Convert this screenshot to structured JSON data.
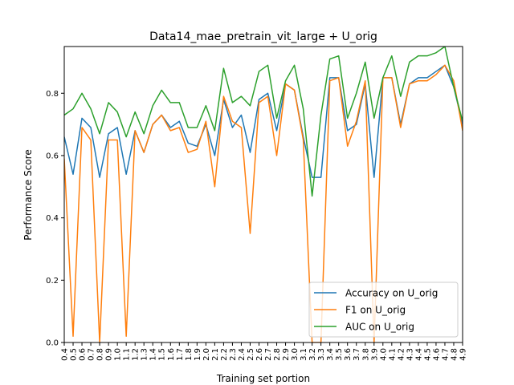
{
  "chart_data": {
    "type": "line",
    "title": "Data14_mae_pretrain_vit_large + U_orig",
    "xlabel": "Training set portion",
    "ylabel": "Performance Score",
    "ylim": [
      0.0,
      0.95
    ],
    "yticks": [
      "0.0",
      "0.2",
      "0.4",
      "0.6",
      "0.8"
    ],
    "grid": false,
    "legend_position": "lower-right",
    "categories": [
      "0.4",
      "0.5",
      "0.6",
      "0.7",
      "0.8",
      "0.9",
      "1.0",
      "1.1",
      "1.2",
      "1.3",
      "1.4",
      "1.5",
      "1.6",
      "1.7",
      "1.8",
      "1.9",
      "2.0",
      "2.1",
      "2.2",
      "2.3",
      "2.4",
      "2.5",
      "2.6",
      "2.7",
      "2.8",
      "2.9",
      "3.0",
      "3.1",
      "3.2",
      "3.3",
      "3.4",
      "3.5",
      "3.6",
      "3.7",
      "3.8",
      "3.9",
      "4.0",
      "4.1",
      "4.2",
      "4.3",
      "4.4",
      "4.5",
      "4.6",
      "4.7",
      "4.8",
      "4.9"
    ],
    "series": [
      {
        "name": "Accuracy on U_orig",
        "color": "#1f77b4",
        "values": [
          0.66,
          0.54,
          0.72,
          0.69,
          0.53,
          0.67,
          0.69,
          0.54,
          0.68,
          0.61,
          0.7,
          0.73,
          0.69,
          0.71,
          0.64,
          0.63,
          0.7,
          0.6,
          0.78,
          0.69,
          0.73,
          0.61,
          0.78,
          0.8,
          0.68,
          0.83,
          0.81,
          0.66,
          0.53,
          0.53,
          0.85,
          0.85,
          0.68,
          0.7,
          0.83,
          0.53,
          0.85,
          0.85,
          0.7,
          0.83,
          0.85,
          0.85,
          0.87,
          0.89,
          0.82,
          0.7
        ]
      },
      {
        "name": "F1 on U_orig",
        "color": "#ff7f0e",
        "values": [
          0.59,
          0.02,
          0.69,
          0.65,
          0.0,
          0.65,
          0.65,
          0.02,
          0.68,
          0.61,
          0.7,
          0.73,
          0.68,
          0.69,
          0.61,
          0.62,
          0.71,
          0.5,
          0.79,
          0.71,
          0.69,
          0.35,
          0.77,
          0.79,
          0.6,
          0.83,
          0.81,
          0.65,
          0.0,
          0.0,
          0.84,
          0.85,
          0.63,
          0.71,
          0.84,
          0.0,
          0.85,
          0.85,
          0.69,
          0.83,
          0.84,
          0.84,
          0.86,
          0.89,
          0.84,
          0.68
        ]
      },
      {
        "name": "AUC on U_orig",
        "color": "#2ca02c",
        "values": [
          0.73,
          0.75,
          0.8,
          0.75,
          0.67,
          0.77,
          0.74,
          0.66,
          0.74,
          0.67,
          0.76,
          0.81,
          0.77,
          0.77,
          0.69,
          0.69,
          0.76,
          0.68,
          0.88,
          0.77,
          0.79,
          0.76,
          0.87,
          0.89,
          0.72,
          0.84,
          0.89,
          0.75,
          0.47,
          0.73,
          0.91,
          0.92,
          0.72,
          0.8,
          0.9,
          0.72,
          0.85,
          0.92,
          0.79,
          0.9,
          0.92,
          0.92,
          0.93,
          0.95,
          0.82,
          0.71
        ]
      }
    ]
  }
}
